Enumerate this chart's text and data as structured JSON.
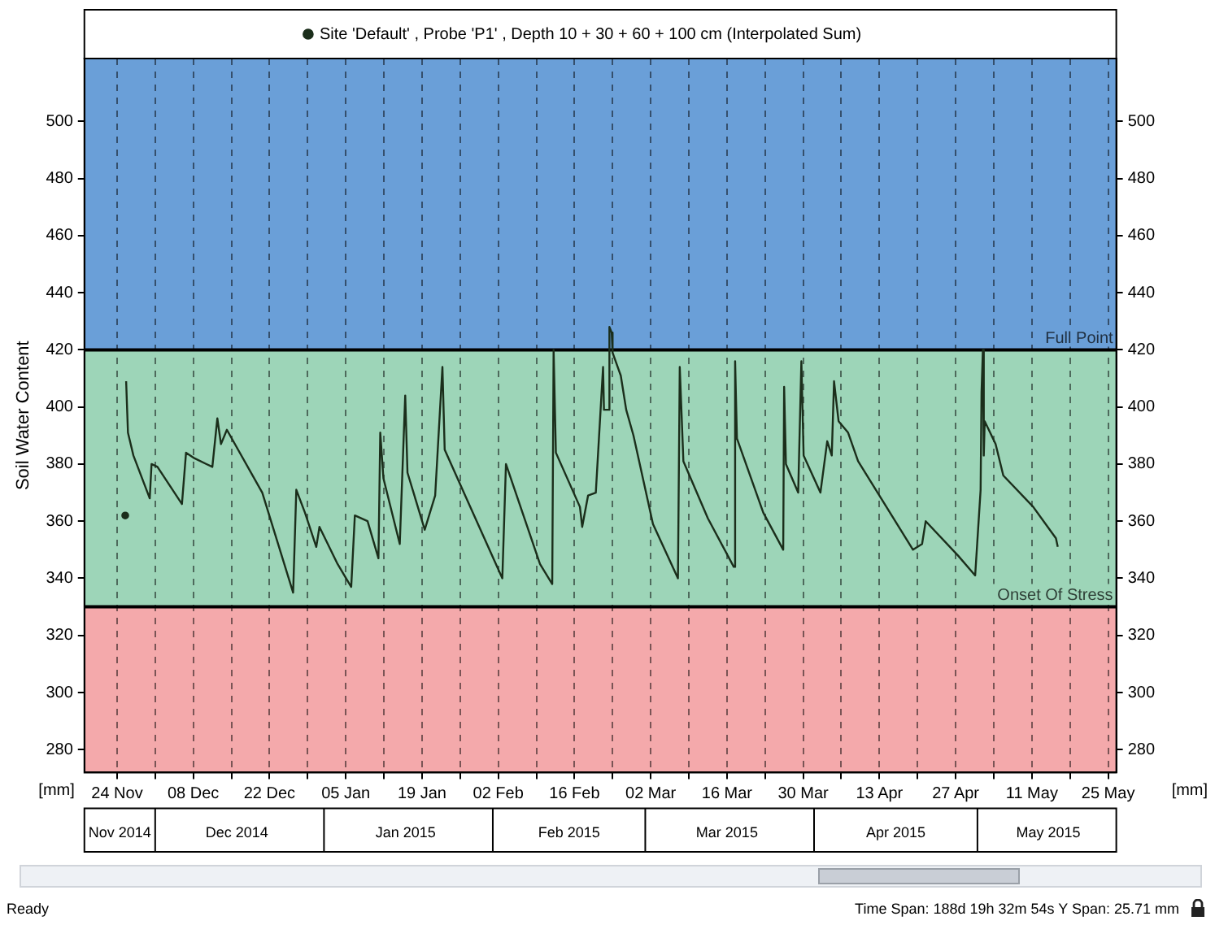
{
  "chart_data": {
    "type": "line",
    "ylabel": "Soil Water Content",
    "annotations": [
      "[mm]",
      "[mm]",
      "Ready",
      "Time Span: 188d 19h 32m 54s",
      "Y Span: 25.71 mm"
    ],
    "series": [
      {
        "name": "Site 'Default' , Probe 'P1' , Depth 10 + 30 + 60 + 100 cm (Interpolated Sum)",
        "color": "#1b2e1b",
        "x": [
          "2014-11-25T12:00",
          "2014-11-25T14:00",
          "2014-11-25T16:00",
          "2014-11-26T00:00",
          "2014-11-27T00:00",
          "2014-11-30T00:00",
          "2014-11-30T08:00",
          "2014-12-01T10:00",
          "2014-12-05T22:00",
          "2014-12-06T16:00",
          "2014-12-08T06:00",
          "2014-12-11T12:00",
          "2014-12-12T10:00",
          "2014-12-13T02:00",
          "2014-12-14T04:00",
          "2014-12-20T16:00",
          "2014-12-26T08:00",
          "2014-12-26T22:00",
          "2014-12-28T12:00",
          "2014-12-30T14:00",
          "2014-12-31T04:00",
          "2015-01-03T12:00",
          "2015-01-06T00:00",
          "2015-01-06T16:00",
          "2015-01-09T00:00",
          "2015-01-11T00:00",
          "2015-01-11T08:00",
          "2015-01-11T22:00",
          "2015-01-14T22:00",
          "2015-01-15T22:00",
          "2015-01-16T08:00",
          "2015-01-19T12:00",
          "2015-01-21T10:00",
          "2015-01-22T18:00",
          "2015-01-23T04:00",
          "2015-01-26T22:00",
          "2015-02-02T18:00",
          "2015-02-03T10:00",
          "2015-02-09T16:00",
          "2015-02-11T22:00",
          "2015-02-12T04:00",
          "2015-02-12T14:00",
          "2015-02-17T00:00",
          "2015-02-17T10:00",
          "2015-02-18T12:00",
          "2015-02-19T22:00",
          "2015-02-21T06:00",
          "2015-02-21T10:00",
          "2015-02-22T08:00",
          "2015-02-22T10:00",
          "2015-02-22T20:00",
          "2015-02-23T00:00",
          "2015-02-24T12:00",
          "2015-02-25T12:00",
          "2015-02-26T20:00",
          "2015-03-02T10:00",
          "2015-03-07T00:00",
          "2015-03-07T08:00",
          "2015-03-08T00:00",
          "2015-03-12T12:00",
          "2015-03-17T06:00",
          "2015-03-17T12:00",
          "2015-03-17T20:00",
          "2015-03-22T16:00",
          "2015-03-26T08:00",
          "2015-03-26T12:00",
          "2015-03-26T20:00",
          "2015-03-29T02:00",
          "2015-03-29T16:00",
          "2015-03-30T02:00",
          "2015-04-02T04:00",
          "2015-04-03T10:00",
          "2015-04-04T06:00",
          "2015-04-04T16:00",
          "2015-04-05T12:00",
          "2015-04-07T06:00",
          "2015-04-09T02:00",
          "2015-04-19T04:00",
          "2015-04-20T20:00",
          "2015-04-21T12:00",
          "2015-04-27T10:00",
          "2015-04-30T14:00",
          "2015-05-01T14:00",
          "2015-05-01T18:00",
          "2015-05-02T00:00",
          "2015-05-02T04:00",
          "2015-05-02T08:00",
          "2015-05-04T08:00",
          "2015-05-05T18:00",
          "2015-05-11T06:00",
          "2015-05-15T10:00",
          "2015-05-15T18:00"
        ],
        "values": [
          362,
          null,
          409,
          391,
          383,
          368,
          380,
          379,
          366,
          384,
          382,
          379,
          396,
          387,
          392,
          370,
          335,
          371,
          363,
          351,
          358,
          345,
          337,
          362,
          360,
          347,
          391,
          375,
          352,
          404,
          377,
          357,
          369,
          414,
          385,
          369,
          340,
          380,
          345,
          338,
          420,
          384,
          365,
          358,
          369,
          370,
          414,
          399,
          399,
          428,
          426,
          419,
          411,
          399,
          390,
          359,
          340,
          414,
          381,
          361,
          344,
          416,
          389,
          363,
          350,
          407,
          380,
          370,
          416,
          383,
          370,
          388,
          383,
          409,
          395,
          391,
          381,
          350,
          352,
          360,
          348,
          341,
          371,
          405,
          420,
          383,
          395,
          387,
          376,
          365,
          354,
          351
        ]
      }
    ],
    "xlim": [
      "2014-11-18",
      "2015-05-26T12:00"
    ],
    "xticks": [
      {
        "value": "2014-11-24",
        "label": "24 Nov"
      },
      {
        "value": "2014-12-01",
        "label": null
      },
      {
        "value": "2014-12-08",
        "label": "08 Dec"
      },
      {
        "value": "2014-12-15",
        "label": null
      },
      {
        "value": "2014-12-22",
        "label": "22 Dec"
      },
      {
        "value": "2014-12-29",
        "label": null
      },
      {
        "value": "2015-01-05",
        "label": "05 Jan"
      },
      {
        "value": "2015-01-12",
        "label": null
      },
      {
        "value": "2015-01-19",
        "label": "19 Jan"
      },
      {
        "value": "2015-01-26",
        "label": null
      },
      {
        "value": "2015-02-02",
        "label": "02 Feb"
      },
      {
        "value": "2015-02-09",
        "label": null
      },
      {
        "value": "2015-02-16",
        "label": "16 Feb"
      },
      {
        "value": "2015-02-23",
        "label": null
      },
      {
        "value": "2015-03-02",
        "label": "02 Mar"
      },
      {
        "value": "2015-03-09",
        "label": null
      },
      {
        "value": "2015-03-16",
        "label": "16 Mar"
      },
      {
        "value": "2015-03-23",
        "label": null
      },
      {
        "value": "2015-03-30",
        "label": "30 Mar"
      },
      {
        "value": "2015-04-06",
        "label": null
      },
      {
        "value": "2015-04-13",
        "label": "13 Apr"
      },
      {
        "value": "2015-04-20",
        "label": null
      },
      {
        "value": "2015-04-27",
        "label": "27 Apr"
      },
      {
        "value": "2015-05-04",
        "label": null
      },
      {
        "value": "2015-05-11",
        "label": "11 May"
      },
      {
        "value": "2015-05-18",
        "label": null
      },
      {
        "value": "2015-05-25",
        "label": "25 May"
      }
    ],
    "x2lim": [
      "2014-11-18",
      "2015-05-26T12:00"
    ],
    "x2ticks": [
      {
        "value": "2014-11-24T12:00",
        "label": "Nov 2014"
      },
      {
        "value": "2014-12-16",
        "label": "Dec 2014"
      },
      {
        "value": "2015-01-16",
        "label": "Jan 2015"
      },
      {
        "value": "2015-02-15",
        "label": "Feb 2015"
      },
      {
        "value": "2015-03-16",
        "label": "Mar 2015"
      },
      {
        "value": "2015-04-16",
        "label": "Apr 2015"
      },
      {
        "value": "2015-05-14",
        "label": "May 2015"
      }
    ],
    "ylim": [
      272,
      522
    ],
    "yticks": [
      280,
      300,
      320,
      340,
      360,
      380,
      400,
      420,
      440,
      460,
      480,
      500
    ],
    "y2lim": [
      272,
      522
    ],
    "y2ticks": [
      280,
      300,
      320,
      340,
      360,
      380,
      400,
      420,
      440,
      460,
      480,
      500
    ],
    "bands": [
      {
        "axis": "y",
        "from": 420,
        "to": 522,
        "color": "#6a9fd8"
      },
      {
        "axis": "y",
        "from": 330,
        "to": 420,
        "color": "#9dd5b8"
      },
      {
        "axis": "y",
        "from": 272,
        "to": 330,
        "color": "#f4a9ab"
      }
    ],
    "ref_lines": [
      {
        "axis": "y",
        "value": 420,
        "label": "Full Point",
        "color": "#000000"
      },
      {
        "axis": "y",
        "value": 330,
        "label": "Onset Of Stress",
        "color": "#000000"
      }
    ],
    "grid": "x",
    "legend": "top"
  }
}
